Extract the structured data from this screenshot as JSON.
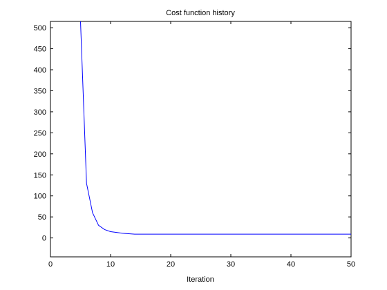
{
  "chart_data": {
    "type": "line",
    "title": "Cost function history",
    "xlabel": "Iteration",
    "ylabel": "",
    "xlim": [
      0,
      50
    ],
    "ylim": [
      -45,
      515
    ],
    "xticks": [
      0,
      10,
      20,
      30,
      40,
      50
    ],
    "yticks": [
      0,
      50,
      100,
      150,
      200,
      250,
      300,
      350,
      400,
      450,
      500
    ],
    "grid": false,
    "line_color": "#0000ff",
    "series": [
      {
        "x": [
          5,
          6,
          7,
          8,
          9,
          10,
          11,
          12,
          13,
          14,
          15,
          20,
          25,
          30,
          35,
          40,
          45,
          50
        ],
        "values": [
          515,
          130,
          60,
          30,
          20,
          15,
          13,
          11,
          10,
          9,
          9,
          9,
          9,
          9,
          9,
          9,
          9,
          9
        ]
      }
    ]
  }
}
